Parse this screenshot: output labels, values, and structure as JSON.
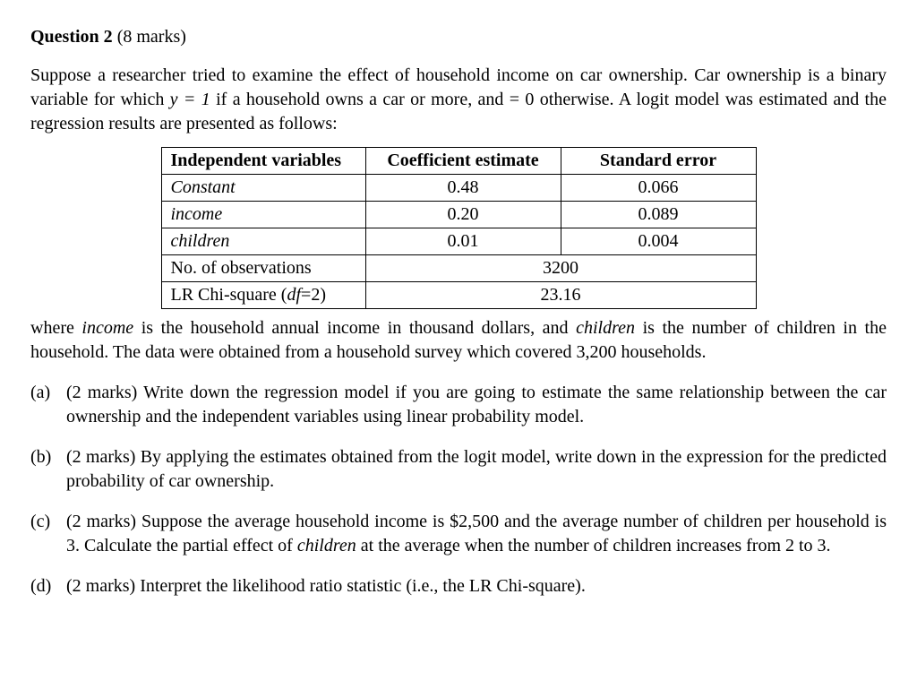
{
  "heading": {
    "question_label": "Question 2",
    "marks_label": "(8 marks)"
  },
  "intro": {
    "text_pre": "Suppose a researcher tried to examine the effect of household income on car ownership. Car ownership is a binary variable for which ",
    "y_eq": "y = 1",
    "text_mid": " if a household owns a car or more, and = 0 otherwise. A logit model was estimated and the regression results are presented as follows:"
  },
  "table": {
    "headers": {
      "var": "Independent variables",
      "coef": "Coefficient estimate",
      "se": "Standard error"
    },
    "rows": [
      {
        "var": "Constant",
        "var_italic": true,
        "coef": "0.48",
        "se": "0.066"
      },
      {
        "var": "income",
        "var_italic": true,
        "coef": "0.20",
        "se": "0.089"
      },
      {
        "var": "children",
        "var_italic": true,
        "coef": "0.01",
        "se": "0.004"
      }
    ],
    "foot": [
      {
        "label": "No. of observations",
        "value": "3200"
      },
      {
        "label_pre": "LR Chi-square (",
        "df": "df",
        "label_post": "=2)",
        "value": "23.16"
      }
    ]
  },
  "post_table": {
    "p1": "where ",
    "income": "income",
    "p2": " is the household annual income in thousand dollars, and ",
    "children": "children",
    "p3": " is the number of children in the household. The data were obtained from a household survey which covered 3,200 households."
  },
  "parts": {
    "a": {
      "label": "(a)",
      "marks": "(2 marks)",
      "text": " Write down the regression model if you are going to estimate the same relationship between the car ownership and the independent variables using linear probability model."
    },
    "b": {
      "label": "(b)",
      "marks": "(2 marks)",
      "text": " By applying the estimates obtained from the logit model, write down in the expression for the predicted probability of car ownership."
    },
    "c": {
      "label": "(c)",
      "marks": "(2 marks)",
      "text_pre": " Suppose the average household income is $2,500 and the average number of children per household is 3. Calculate the partial effect of ",
      "children": "children",
      "text_post": " at the average when the number of children increases from 2 to 3."
    },
    "d": {
      "label": "(d)",
      "marks": "(2 marks)",
      "text": " Interpret the likelihood ratio statistic (i.e., the LR Chi-square)."
    }
  }
}
